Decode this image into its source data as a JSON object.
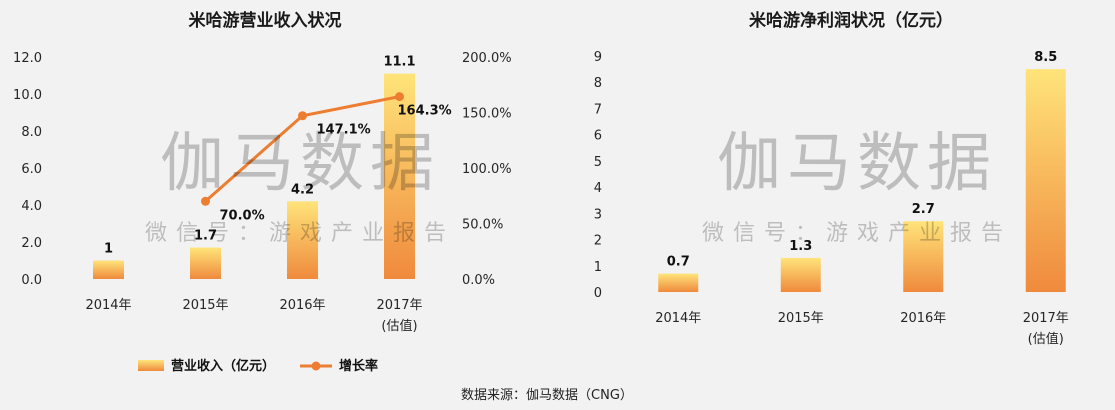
{
  "colors": {
    "bar_top": "#ffe47a",
    "bar_bottom": "#ef8a3c",
    "line": "#ed7d31",
    "background": "#f2f2f2"
  },
  "watermark": {
    "big": "伽马数据",
    "small": "微信号：游戏产业报告"
  },
  "source_note": "数据来源：伽马数据（CNG）",
  "chart_data": [
    {
      "type": "bar",
      "title": "米哈游营业收入状况",
      "categories": [
        "2014年",
        "2015年",
        "2016年",
        "2017年\n(估值)"
      ],
      "series": [
        {
          "name": "营业收入（亿元）",
          "type": "bar",
          "axis": "left",
          "values": [
            1,
            1.7,
            4.2,
            11.1
          ],
          "labels": [
            "1",
            "1.7",
            "4.2",
            "11.1"
          ]
        },
        {
          "name": "增长率",
          "type": "line",
          "axis": "right",
          "values": [
            null,
            70.0,
            147.1,
            164.3
          ],
          "labels": [
            "",
            "70.0%",
            "147.1%",
            "164.3%"
          ]
        }
      ],
      "y_left": {
        "min": 0,
        "max": 12,
        "step": 2,
        "ticks": [
          "0.0",
          "2.0",
          "4.0",
          "6.0",
          "8.0",
          "10.0",
          "12.0"
        ]
      },
      "y_right": {
        "min": 0,
        "max": 200,
        "step": 50,
        "ticks": [
          "0.0%",
          "50.0%",
          "100.0%",
          "150.0%",
          "200.0%"
        ]
      },
      "legend": {
        "position": "bottom",
        "bar_label": "营业收入（亿元）",
        "line_label": "增长率"
      },
      "grid": false
    },
    {
      "type": "bar",
      "title": "米哈游净利润状况（亿元）",
      "categories": [
        "2014年",
        "2015年",
        "2016年",
        "2017年\n(估值)"
      ],
      "series": [
        {
          "name": "净利润",
          "type": "bar",
          "axis": "left",
          "values": [
            0.7,
            1.3,
            2.7,
            8.5
          ],
          "labels": [
            "0.7",
            "1.3",
            "2.7",
            "8.5"
          ]
        }
      ],
      "y_left": {
        "min": 0,
        "max": 9,
        "step": 1,
        "ticks": [
          "0",
          "1",
          "2",
          "3",
          "4",
          "5",
          "6",
          "7",
          "8",
          "9"
        ]
      },
      "grid": false
    }
  ]
}
